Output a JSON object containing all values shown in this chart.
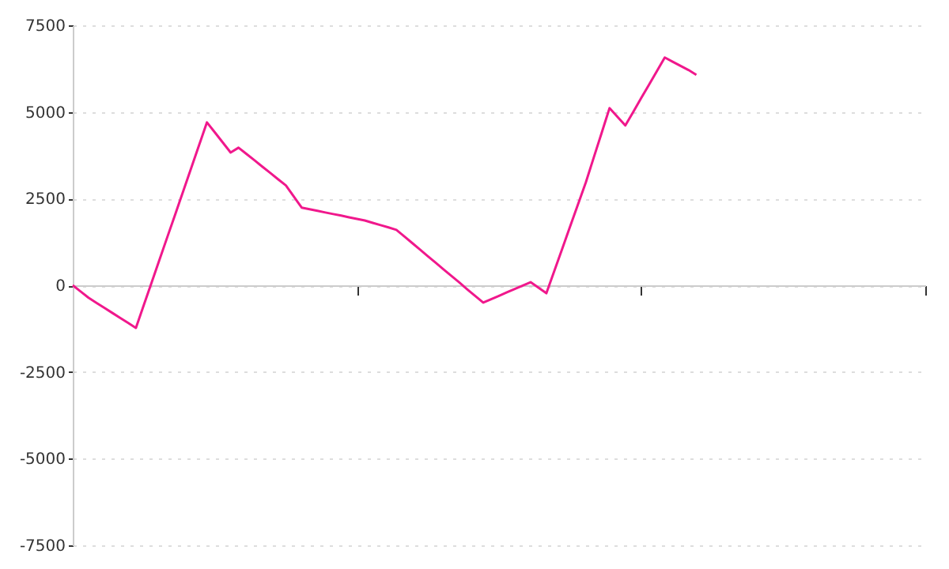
{
  "chart_data": {
    "type": "line",
    "categories": [
      null,
      null,
      null,
      null,
      null,
      null,
      null,
      null,
      null,
      null,
      null,
      null,
      null,
      null,
      null,
      null,
      null,
      null,
      null,
      null,
      null,
      null,
      null,
      null,
      null,
      null,
      null,
      null,
      null,
      null,
      null,
      null,
      null,
      null,
      null,
      null,
      null,
      null,
      null,
      null,
      null,
      null,
      null,
      null,
      null,
      null,
      null,
      null,
      null,
      null,
      null,
      null,
      null,
      null,
      null,
      null,
      null,
      null,
      null,
      null,
      null,
      null,
      null,
      null,
      null,
      null,
      null,
      null,
      null,
      null,
      null,
      null,
      null,
      null,
      null,
      null,
      null,
      null,
      null,
      null,
      null,
      null,
      null,
      null,
      null,
      null,
      null,
      null,
      null,
      null,
      null,
      null,
      null,
      null,
      null,
      null,
      null,
      null,
      null,
      null,
      null,
      null,
      null,
      null,
      null,
      null,
      null,
      null,
      null
    ],
    "series": [
      {
        "color": "#f0188c",
        "values": [
          0,
          -180,
          -360,
          -505,
          -650,
          -795,
          -940,
          -1085,
          -1230,
          -570,
          85,
          745,
          1405,
          2060,
          2720,
          3380,
          4040,
          4700,
          4410,
          4120,
          3830,
          3970,
          3790,
          3610,
          3425,
          3245,
          3060,
          2880,
          2560,
          2240,
          2195,
          2150,
          2100,
          2055,
          2010,
          1960,
          1915,
          1870,
          1800,
          1735,
          1670,
          1600,
          1410,
          1220,
          1030,
          835,
          645,
          455,
          265,
          75,
          -120,
          -310,
          -500,
          -400,
          -305,
          -205,
          -105,
          -10,
          90,
          -70,
          -230,
          410,
          1050,
          1690,
          2330,
          2970,
          3685,
          4395,
          5110,
          4860,
          4610,
          5000,
          5395,
          5785,
          6180,
          6570,
          6450,
          6330,
          6210,
          6070,
          null,
          null,
          null,
          null,
          null,
          null,
          null,
          null,
          null,
          null,
          null,
          null,
          null,
          null,
          null,
          null,
          null,
          null,
          null,
          null,
          null,
          null,
          null,
          null,
          null,
          null,
          null,
          null,
          null
        ]
      }
    ],
    "ylim": [
      -7500,
      7500
    ],
    "yticks": [
      -7500,
      -5000,
      -2500,
      0,
      2500,
      5000,
      7500
    ],
    "tick_labels": "y",
    "grid": "y",
    "marker": "none",
    "line_style": "solid"
  }
}
